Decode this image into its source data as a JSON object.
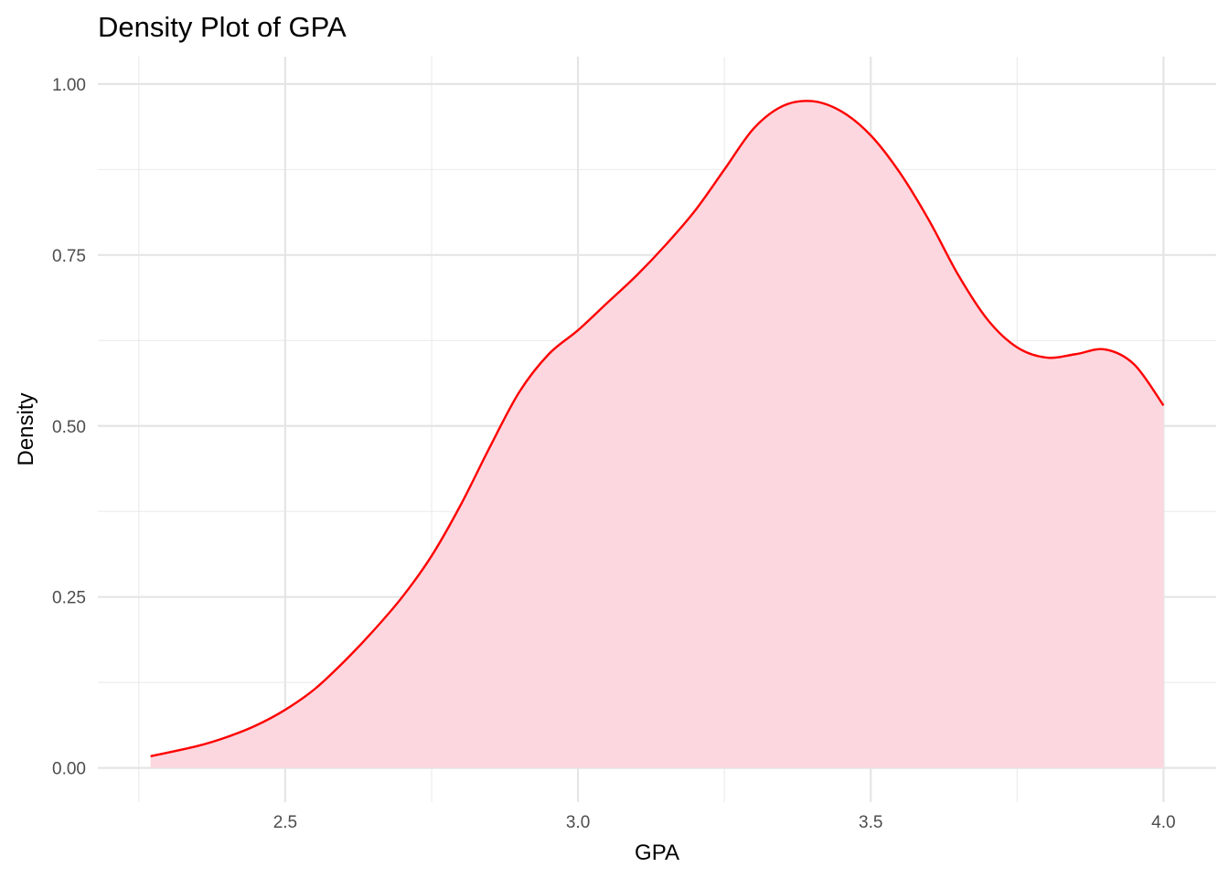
{
  "chart_data": {
    "type": "area",
    "title": "Density Plot of GPA",
    "xlabel": "GPA",
    "ylabel": "Density",
    "xlim": [
      2.18,
      4.09
    ],
    "ylim": [
      -0.05,
      1.04
    ],
    "x_ticks": [
      2.5,
      3.0,
      3.5,
      4.0
    ],
    "x_tick_labels": [
      "2.5",
      "3.0",
      "3.5",
      "4.0"
    ],
    "y_ticks": [
      0.0,
      0.25,
      0.5,
      0.75,
      1.0
    ],
    "y_tick_labels": [
      "0.00",
      "0.25",
      "0.50",
      "0.75",
      "1.00"
    ],
    "grid": true,
    "line_color": "#ff0000",
    "fill_color": "#fcd7df",
    "series": [
      {
        "x": [
          2.27,
          2.35,
          2.4,
          2.45,
          2.5,
          2.55,
          2.6,
          2.65,
          2.7,
          2.75,
          2.8,
          2.85,
          2.9,
          2.95,
          3.0,
          3.05,
          3.1,
          3.15,
          3.2,
          3.25,
          3.3,
          3.35,
          3.4,
          3.45,
          3.5,
          3.55,
          3.6,
          3.65,
          3.7,
          3.75,
          3.8,
          3.85,
          3.9,
          3.95,
          4.0
        ],
        "y": [
          0.017,
          0.032,
          0.045,
          0.062,
          0.085,
          0.115,
          0.155,
          0.2,
          0.25,
          0.31,
          0.385,
          0.47,
          0.55,
          0.605,
          0.64,
          0.68,
          0.72,
          0.765,
          0.815,
          0.875,
          0.935,
          0.968,
          0.975,
          0.96,
          0.925,
          0.87,
          0.8,
          0.72,
          0.655,
          0.615,
          0.6,
          0.605,
          0.612,
          0.59,
          0.53
        ]
      }
    ]
  }
}
